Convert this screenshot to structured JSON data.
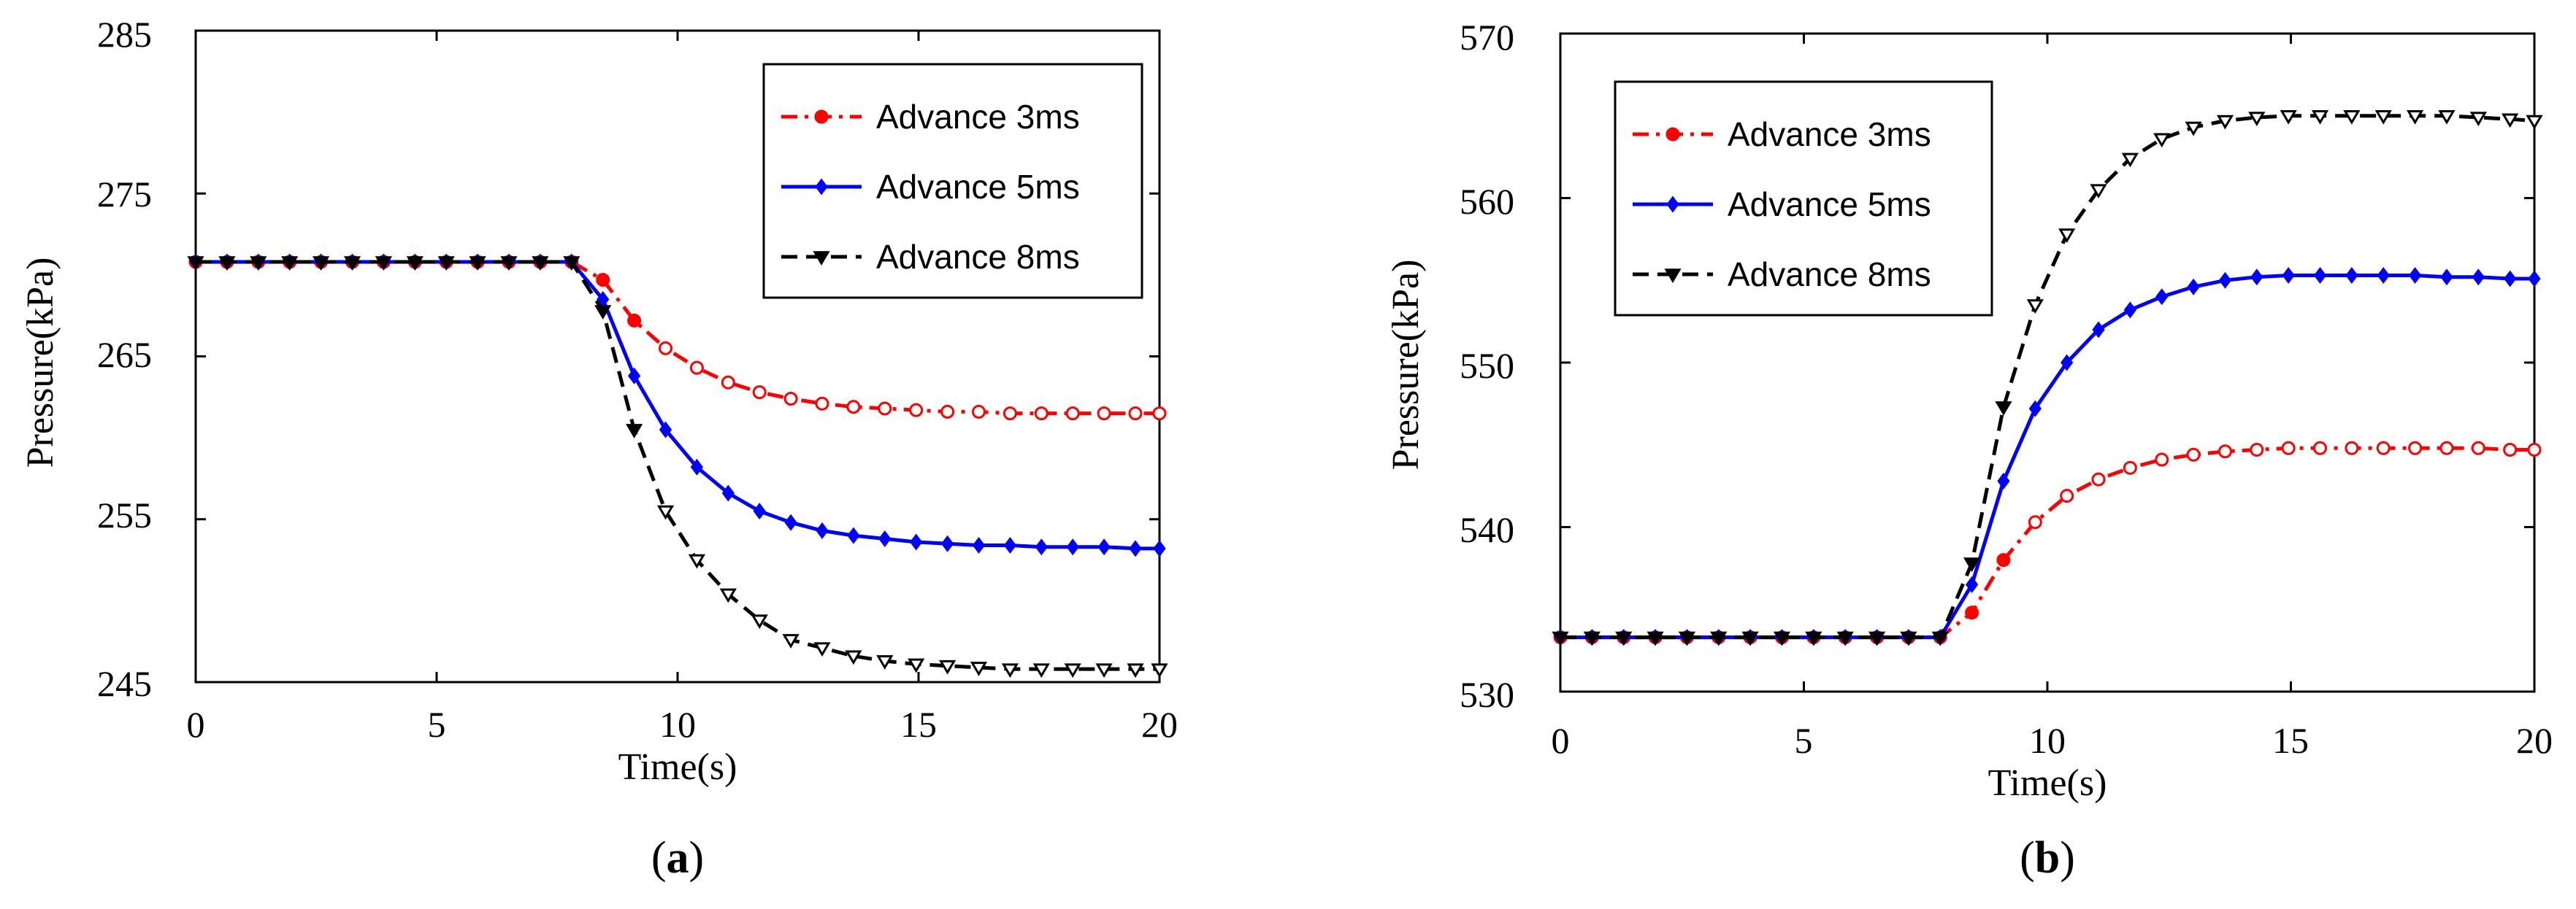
{
  "chart_data": [
    {
      "type": "line",
      "panel": "a",
      "panel_label_open": "(",
      "panel_label_letter": "a",
      "panel_label_close": ")",
      "xlabel": "Time(s)",
      "ylabel": "Pressure(kPa)",
      "xlim": [
        0,
        20
      ],
      "ylim": [
        245,
        285
      ],
      "xticks": [
        0,
        5,
        10,
        15,
        20
      ],
      "yticks": [
        245,
        255,
        265,
        275,
        285
      ],
      "legend_position": "top-right",
      "series": [
        {
          "name": "Advance 3ms",
          "color": "#ff0000",
          "dash": "dashdot",
          "marker": "circle",
          "x": [
            0,
            0.65,
            1.3,
            1.95,
            2.6,
            3.25,
            3.9,
            4.55,
            5.2,
            5.85,
            6.5,
            7.15,
            7.8,
            8.45,
            9.1,
            9.75,
            10.4,
            11.05,
            11.7,
            12.35,
            13.0,
            13.65,
            14.3,
            14.95,
            15.6,
            16.25,
            16.9,
            17.55,
            18.2,
            18.85,
            19.5,
            20.0
          ],
          "y": [
            270.8,
            270.8,
            270.8,
            270.8,
            270.8,
            270.8,
            270.8,
            270.8,
            270.8,
            270.8,
            270.8,
            270.8,
            270.8,
            269.7,
            267.2,
            265.5,
            264.3,
            263.4,
            262.8,
            262.4,
            262.1,
            261.9,
            261.8,
            261.7,
            261.6,
            261.6,
            261.5,
            261.5,
            261.5,
            261.5,
            261.5,
            261.5
          ]
        },
        {
          "name": "Advance 5ms",
          "color": "#0000ff",
          "dash": "solid",
          "marker": "diamond",
          "x": [
            0,
            0.65,
            1.3,
            1.95,
            2.6,
            3.25,
            3.9,
            4.55,
            5.2,
            5.85,
            6.5,
            7.15,
            7.8,
            8.45,
            9.1,
            9.75,
            10.4,
            11.05,
            11.7,
            12.35,
            13.0,
            13.65,
            14.3,
            14.95,
            15.6,
            16.25,
            16.9,
            17.55,
            18.2,
            18.85,
            19.5,
            20.0
          ],
          "y": [
            270.8,
            270.8,
            270.8,
            270.8,
            270.8,
            270.8,
            270.8,
            270.8,
            270.8,
            270.8,
            270.8,
            270.8,
            270.8,
            268.5,
            263.8,
            260.5,
            258.2,
            256.6,
            255.5,
            254.8,
            254.3,
            254.0,
            253.8,
            253.6,
            253.5,
            253.4,
            253.4,
            253.3,
            253.3,
            253.3,
            253.2,
            253.2
          ]
        },
        {
          "name": "Advance 8ms",
          "color": "#000000",
          "dash": "dashed",
          "marker": "triangle-down",
          "x": [
            0,
            0.65,
            1.3,
            1.95,
            2.6,
            3.25,
            3.9,
            4.55,
            5.2,
            5.85,
            6.5,
            7.15,
            7.8,
            8.45,
            9.1,
            9.75,
            10.4,
            11.05,
            11.7,
            12.35,
            13.0,
            13.65,
            14.3,
            14.95,
            15.6,
            16.25,
            16.9,
            17.55,
            18.2,
            18.85,
            19.5,
            20.0
          ],
          "y": [
            270.8,
            270.8,
            270.8,
            270.8,
            270.8,
            270.8,
            270.8,
            270.8,
            270.8,
            270.8,
            270.8,
            270.8,
            270.8,
            267.8,
            260.5,
            255.5,
            252.5,
            250.4,
            248.8,
            247.6,
            247.1,
            246.6,
            246.3,
            246.1,
            246.0,
            245.9,
            245.8,
            245.8,
            245.8,
            245.8,
            245.8,
            245.8
          ]
        }
      ]
    },
    {
      "type": "line",
      "panel": "b",
      "panel_label_open": "(",
      "panel_label_letter": "b",
      "panel_label_close": ")",
      "xlabel": "Time(s)",
      "ylabel": "Pressure(kPa)",
      "xlim": [
        0,
        20
      ],
      "ylim": [
        530,
        570
      ],
      "xticks": [
        0,
        5,
        10,
        15,
        20
      ],
      "yticks": [
        530,
        540,
        550,
        560,
        570
      ],
      "legend_position": "top-left",
      "series": [
        {
          "name": "Advance 3ms",
          "color": "#ff0000",
          "dash": "dashdot",
          "marker": "circle",
          "x": [
            0,
            0.65,
            1.3,
            1.95,
            2.6,
            3.25,
            3.9,
            4.55,
            5.2,
            5.85,
            6.5,
            7.15,
            7.8,
            8.45,
            9.1,
            9.75,
            10.4,
            11.05,
            11.7,
            12.35,
            13.0,
            13.65,
            14.3,
            14.95,
            15.6,
            16.25,
            16.9,
            17.55,
            18.2,
            18.85,
            19.5,
            20.0
          ],
          "y": [
            533.3,
            533.3,
            533.3,
            533.3,
            533.3,
            533.3,
            533.3,
            533.3,
            533.3,
            533.3,
            533.3,
            533.3,
            533.3,
            534.8,
            538.0,
            540.3,
            541.9,
            542.9,
            543.6,
            544.1,
            544.4,
            544.6,
            544.7,
            544.8,
            544.8,
            544.8,
            544.8,
            544.8,
            544.8,
            544.8,
            544.7,
            544.7
          ]
        },
        {
          "name": "Advance 5ms",
          "color": "#0000ff",
          "dash": "solid",
          "marker": "diamond",
          "x": [
            0,
            0.65,
            1.3,
            1.95,
            2.6,
            3.25,
            3.9,
            4.55,
            5.2,
            5.85,
            6.5,
            7.15,
            7.8,
            8.45,
            9.1,
            9.75,
            10.4,
            11.05,
            11.7,
            12.35,
            13.0,
            13.65,
            14.3,
            14.95,
            15.6,
            16.25,
            16.9,
            17.55,
            18.2,
            18.85,
            19.5,
            20.0
          ],
          "y": [
            533.3,
            533.3,
            533.3,
            533.3,
            533.3,
            533.3,
            533.3,
            533.3,
            533.3,
            533.3,
            533.3,
            533.3,
            533.3,
            536.5,
            542.8,
            547.2,
            550.0,
            552.0,
            553.2,
            554.0,
            554.6,
            555.0,
            555.2,
            555.3,
            555.3,
            555.3,
            555.3,
            555.3,
            555.2,
            555.2,
            555.1,
            555.1
          ]
        },
        {
          "name": "Advance 8ms",
          "color": "#000000",
          "dash": "dashed",
          "marker": "triangle-down",
          "x": [
            0,
            0.65,
            1.3,
            1.95,
            2.6,
            3.25,
            3.9,
            4.55,
            5.2,
            5.85,
            6.5,
            7.15,
            7.8,
            8.45,
            9.1,
            9.75,
            10.4,
            11.05,
            11.7,
            12.35,
            13.0,
            13.65,
            14.3,
            14.95,
            15.6,
            16.25,
            16.9,
            17.55,
            18.2,
            18.85,
            19.5,
            20.0
          ],
          "y": [
            533.3,
            533.3,
            533.3,
            533.3,
            533.3,
            533.3,
            533.3,
            533.3,
            533.3,
            533.3,
            533.3,
            533.3,
            533.3,
            537.8,
            547.3,
            553.5,
            557.8,
            560.5,
            562.4,
            563.6,
            564.3,
            564.7,
            564.9,
            565.0,
            565.0,
            565.0,
            565.0,
            565.0,
            565.0,
            564.9,
            564.8,
            564.7
          ]
        }
      ]
    }
  ]
}
